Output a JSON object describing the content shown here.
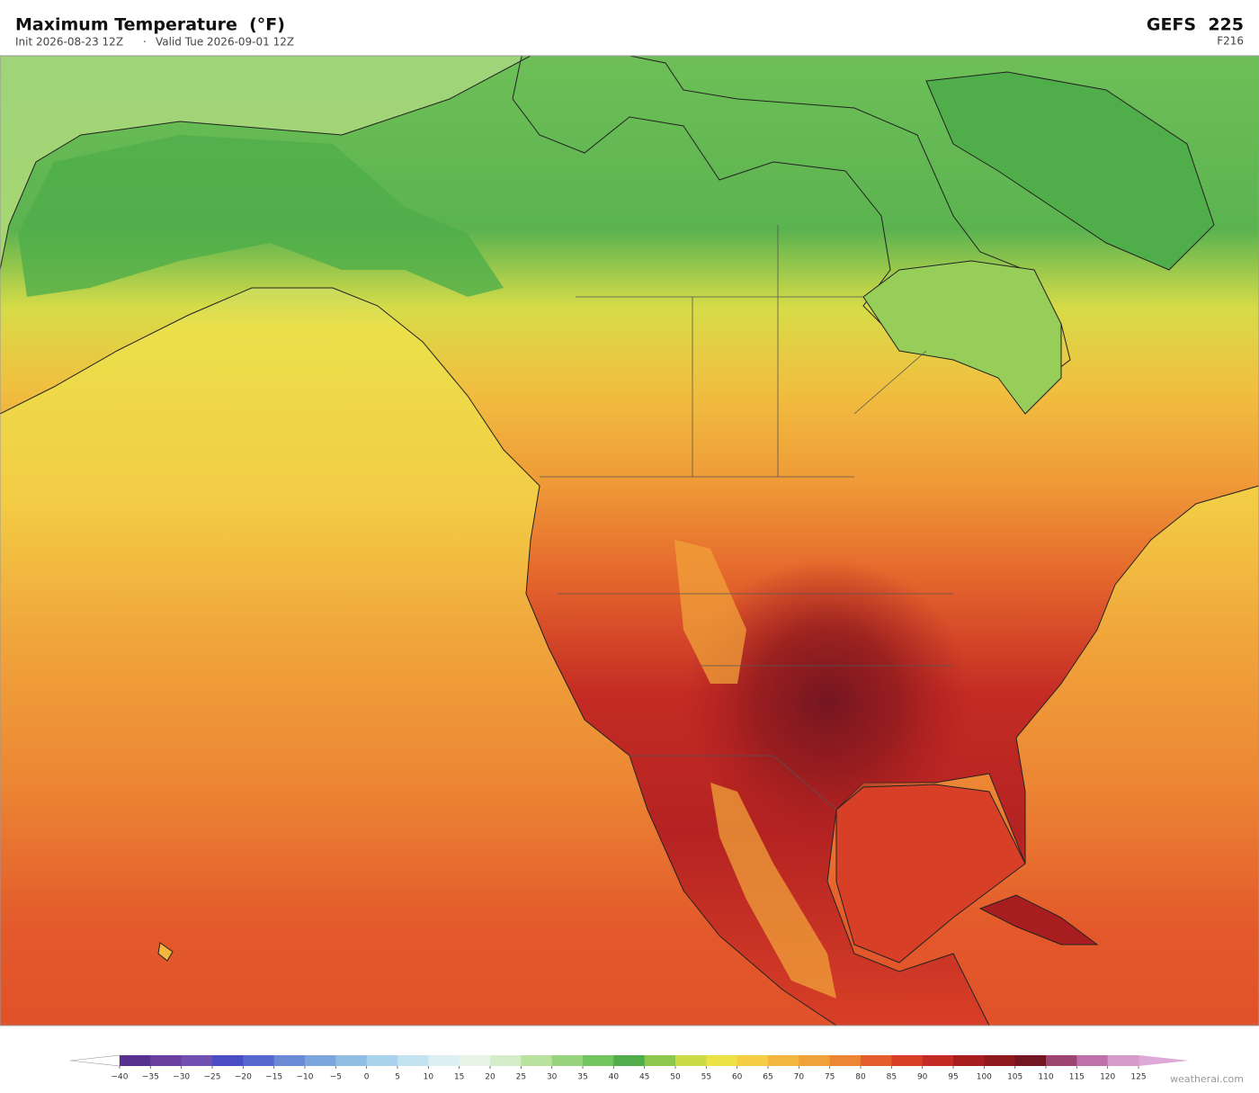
{
  "header": {
    "title": "Maximum Temperature  (°F)",
    "init": "Init 2026-08-23 12Z",
    "separator": "·",
    "valid": "Valid Tue 2026-09-01 12Z",
    "model": "GEFS  225",
    "forecast_hour": "F216"
  },
  "colorbar": {
    "ticks": [
      {
        "value": -40,
        "label": "−40"
      },
      {
        "value": -35,
        "label": "−35"
      },
      {
        "value": -30,
        "label": "−30"
      },
      {
        "value": -25,
        "label": "−25"
      },
      {
        "value": -20,
        "label": "−20"
      },
      {
        "value": -15,
        "label": "−15"
      },
      {
        "value": -10,
        "label": "−10"
      },
      {
        "value": -5,
        "label": "−5"
      },
      0,
      5,
      10,
      15,
      20,
      25,
      30,
      35,
      40,
      45,
      50,
      55,
      60,
      65,
      70,
      75,
      80,
      85,
      90,
      95,
      100,
      105,
      110,
      115,
      120,
      125
    ],
    "colors": [
      "#58308f",
      "#6b3fa0",
      "#7050b0",
      "#4a4ec2",
      "#5468cf",
      "#6a8ad6",
      "#7aa5dd",
      "#8fbde3",
      "#a9d3ec",
      "#c3e3f1",
      "#dcf0f3",
      "#e8f5e6",
      "#d4edc8",
      "#b9e29e",
      "#97d47d",
      "#72c45e",
      "#4fae4a",
      "#8cc84b",
      "#cbdb45",
      "#ece145",
      "#f5cd43",
      "#f3b73f",
      "#f0a13a",
      "#ec8634",
      "#e45e2b",
      "#d83f27",
      "#c42b24",
      "#a81d20",
      "#8e1a1e",
      "#741621",
      "#9b4570",
      "#c070a8",
      "#d89acb"
    ],
    "under_color": "#ffffff",
    "over_color": "#dda9d6"
  },
  "watermark": "weatherai.com"
}
